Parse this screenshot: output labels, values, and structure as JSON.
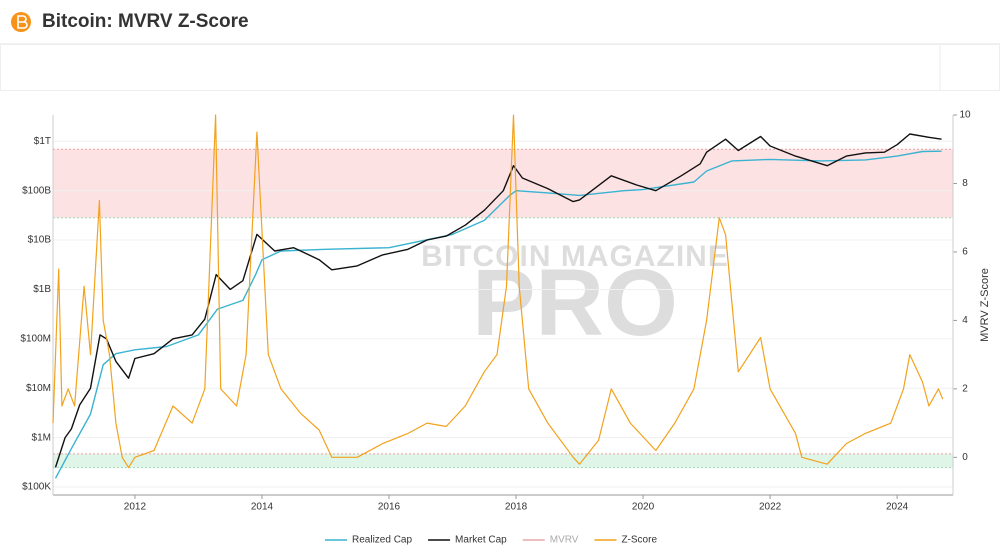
{
  "header": {
    "title": "Bitcoin: MVRV Z-Score"
  },
  "chart_data": {
    "type": "line",
    "y_label": "MVRV Z-Score",
    "watermark": [
      "BITCOIN MAGAZINE",
      "PRO"
    ],
    "xlim": [
      2010.71,
      2024.88
    ],
    "xticks": [
      2012,
      2014,
      2016,
      2018,
      2020,
      2022,
      2024
    ],
    "ylim": [
      69000,
      3400000000000
    ],
    "log_y": true,
    "yticks": [
      {
        "value": 100000,
        "label": "$100K"
      },
      {
        "value": 1000000,
        "label": "$1M"
      },
      {
        "value": 10000000,
        "label": "$10M"
      },
      {
        "value": 100000000,
        "label": "$100M"
      },
      {
        "value": 1000000000,
        "label": "$1B"
      },
      {
        "value": 10000000000,
        "label": "$10B"
      },
      {
        "value": 100000000000,
        "label": "$100B"
      },
      {
        "value": 1000000000000,
        "label": "$1T"
      }
    ],
    "y2lim": [
      -1.1,
      10
    ],
    "y2ticks": [
      0,
      2,
      4,
      6,
      8,
      10
    ],
    "grid": true,
    "bands": [
      {
        "axis": "y2",
        "from": 7,
        "to": 9,
        "color": "#fde2e4"
      },
      {
        "axis": "y2",
        "from": -0.3,
        "to": 0.1,
        "color": "#dff5e8"
      }
    ],
    "legend": "bottom",
    "series": [
      {
        "name": "Realized Cap",
        "color": "#3ab3d1",
        "x": [
          2010.75,
          2011.0,
          2011.3,
          2011.5,
          2011.7,
          2012.0,
          2012.5,
          2013.0,
          2013.3,
          2013.7,
          2013.9,
          2014.0,
          2014.3,
          2015.0,
          2016.0,
          2017.0,
          2017.5,
          2017.9,
          2018.0,
          2018.5,
          2019.0,
          2019.7,
          2020.0,
          2020.8,
          2021.0,
          2021.4,
          2022.0,
          2022.8,
          2023.5,
          2024.0,
          2024.4,
          2024.7
        ],
        "values": [
          150000,
          600000,
          3000000,
          30000000,
          50000000,
          60000000,
          70000000,
          120000000,
          400000000,
          600000000,
          2000000000,
          4000000000,
          6000000000,
          6500000000,
          7000000000,
          13000000000,
          25000000000,
          80000000000,
          100000000000,
          90000000000,
          80000000000,
          100000000000,
          105000000000,
          150000000000,
          250000000000,
          400000000000,
          430000000000,
          400000000000,
          420000000000,
          500000000000,
          620000000000,
          630000000000
        ]
      },
      {
        "name": "Market Cap",
        "color": "#111111",
        "x": [
          2010.75,
          2010.9,
          2011.0,
          2011.13,
          2011.3,
          2011.45,
          2011.55,
          2011.7,
          2011.9,
          2012.0,
          2012.3,
          2012.6,
          2012.9,
          2013.1,
          2013.28,
          2013.5,
          2013.7,
          2013.92,
          2014.2,
          2014.5,
          2014.9,
          2015.1,
          2015.5,
          2015.9,
          2016.3,
          2016.6,
          2016.9,
          2017.2,
          2017.5,
          2017.8,
          2017.96,
          2018.1,
          2018.5,
          2018.9,
          2019.0,
          2019.5,
          2019.9,
          2020.2,
          2020.6,
          2020.9,
          2021.0,
          2021.3,
          2021.5,
          2021.85,
          2022.0,
          2022.4,
          2022.9,
          2023.2,
          2023.5,
          2023.8,
          2024.0,
          2024.2,
          2024.5,
          2024.7
        ],
        "values": [
          250000,
          1000000,
          1500000,
          4600000,
          10000000,
          120000000,
          100000000,
          35000000,
          16000000,
          40000000,
          50000000,
          100000000,
          120000000,
          250000000,
          2000000000,
          1000000000,
          1500000000,
          13000000000,
          6000000000,
          7000000000,
          4000000000,
          2500000000,
          3000000000,
          5000000000,
          6500000000,
          10000000000,
          12000000000,
          20000000000,
          40000000000,
          100000000000,
          320000000000,
          180000000000,
          110000000000,
          60000000000,
          65000000000,
          200000000000,
          130000000000,
          100000000000,
          200000000000,
          350000000000,
          600000000000,
          1100000000000,
          650000000000,
          1250000000000,
          800000000000,
          500000000000,
          320000000000,
          500000000000,
          580000000000,
          600000000000,
          850000000000,
          1400000000000,
          1200000000000,
          1100000000000
        ]
      },
      {
        "name": "MVRV",
        "color": "#e8a7a7",
        "hidden": true
      },
      {
        "name": "Z-Score",
        "color": "#f2a21c",
        "axis": "y2",
        "x": [
          2010.71,
          2010.8,
          2010.85,
          2010.95,
          2011.05,
          2011.2,
          2011.3,
          2011.44,
          2011.5,
          2011.6,
          2011.7,
          2011.8,
          2011.9,
          2012.0,
          2012.3,
          2012.6,
          2012.9,
          2013.1,
          2013.27,
          2013.35,
          2013.6,
          2013.75,
          2013.92,
          2014.1,
          2014.3,
          2014.6,
          2014.9,
          2015.1,
          2015.5,
          2015.9,
          2016.3,
          2016.6,
          2016.9,
          2017.2,
          2017.5,
          2017.7,
          2017.85,
          2017.96,
          2018.05,
          2018.2,
          2018.5,
          2018.9,
          2019.0,
          2019.3,
          2019.5,
          2019.8,
          2020.2,
          2020.5,
          2020.8,
          2021.0,
          2021.2,
          2021.3,
          2021.5,
          2021.85,
          2022.0,
          2022.4,
          2022.5,
          2022.9,
          2023.2,
          2023.5,
          2023.9,
          2024.1,
          2024.2,
          2024.4,
          2024.5,
          2024.65,
          2024.72
        ],
        "values": [
          1,
          5.5,
          1.5,
          2,
          1.5,
          5,
          3,
          7.5,
          4,
          3,
          1,
          0,
          -0.3,
          0,
          0.2,
          1.5,
          1,
          2,
          10,
          2,
          1.5,
          3,
          9.5,
          3,
          2,
          1.3,
          0.8,
          0,
          0,
          0.4,
          0.7,
          1,
          0.9,
          1.5,
          2.5,
          3,
          5,
          10,
          5,
          2,
          1,
          0,
          -0.2,
          0.5,
          2,
          1,
          0.2,
          1,
          2,
          4,
          7,
          6.5,
          2.5,
          3.5,
          2,
          0.7,
          0,
          -0.2,
          0.4,
          0.7,
          1,
          2,
          3,
          2.2,
          1.5,
          2,
          1.7
        ]
      }
    ]
  }
}
